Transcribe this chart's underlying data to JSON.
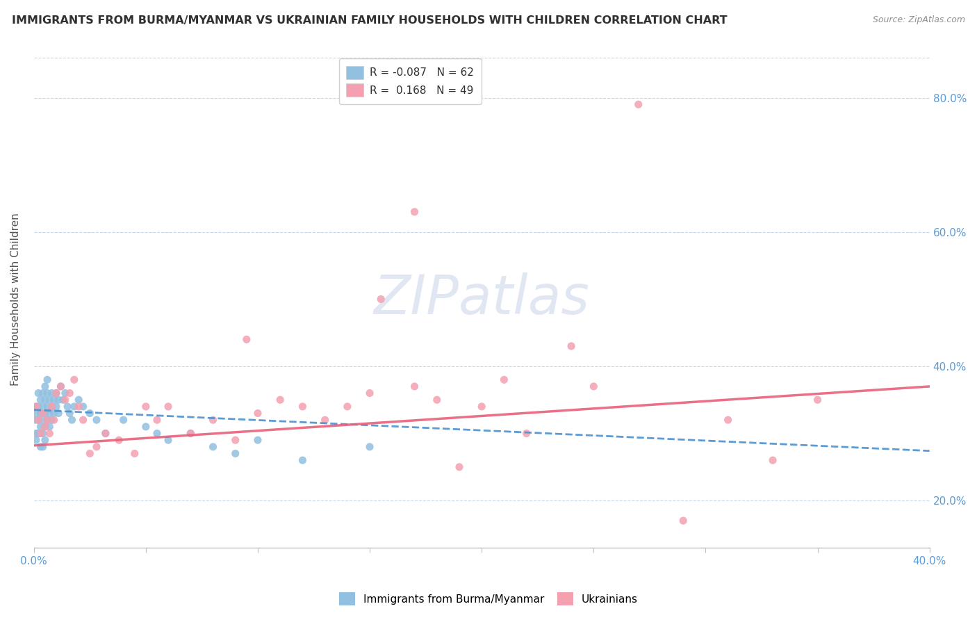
{
  "title": "IMMIGRANTS FROM BURMA/MYANMAR VS UKRAINIAN FAMILY HOUSEHOLDS WITH CHILDREN CORRELATION CHART",
  "source": "Source: ZipAtlas.com",
  "ylabel": "Family Households with Children",
  "xmin": 0.0,
  "xmax": 0.4,
  "ymin": 0.13,
  "ymax": 0.87,
  "right_yticks": [
    0.2,
    0.4,
    0.6,
    0.8
  ],
  "right_yticklabels": [
    "20.0%",
    "40.0%",
    "60.0%",
    "80.0%"
  ],
  "blue_dot_color": "#92c0e0",
  "pink_dot_color": "#f4a0b0",
  "trend_blue_color": "#4a90d0",
  "trend_pink_color": "#e8607a",
  "legend_label_blue": "Immigrants from Burma/Myanmar",
  "legend_label_pink": "Ukrainians",
  "watermark": "ZIPatlas",
  "blue_scatter_x": [
    0.001,
    0.001,
    0.001,
    0.001,
    0.001,
    0.002,
    0.002,
    0.002,
    0.002,
    0.003,
    0.003,
    0.003,
    0.003,
    0.003,
    0.004,
    0.004,
    0.004,
    0.004,
    0.004,
    0.005,
    0.005,
    0.005,
    0.005,
    0.005,
    0.006,
    0.006,
    0.006,
    0.006,
    0.007,
    0.007,
    0.007,
    0.008,
    0.008,
    0.008,
    0.009,
    0.009,
    0.01,
    0.01,
    0.011,
    0.011,
    0.012,
    0.013,
    0.014,
    0.015,
    0.016,
    0.017,
    0.018,
    0.02,
    0.022,
    0.025,
    0.028,
    0.032,
    0.04,
    0.05,
    0.055,
    0.06,
    0.07,
    0.08,
    0.09,
    0.1,
    0.12,
    0.15
  ],
  "blue_scatter_y": [
    0.34,
    0.33,
    0.32,
    0.3,
    0.29,
    0.36,
    0.34,
    0.32,
    0.3,
    0.35,
    0.33,
    0.31,
    0.3,
    0.28,
    0.36,
    0.34,
    0.32,
    0.3,
    0.28,
    0.37,
    0.35,
    0.33,
    0.31,
    0.29,
    0.38,
    0.36,
    0.34,
    0.32,
    0.35,
    0.33,
    0.31,
    0.36,
    0.34,
    0.32,
    0.35,
    0.33,
    0.36,
    0.34,
    0.35,
    0.33,
    0.37,
    0.35,
    0.36,
    0.34,
    0.33,
    0.32,
    0.34,
    0.35,
    0.34,
    0.33,
    0.32,
    0.3,
    0.32,
    0.31,
    0.3,
    0.29,
    0.3,
    0.28,
    0.27,
    0.29,
    0.26,
    0.28
  ],
  "pink_scatter_x": [
    0.001,
    0.002,
    0.003,
    0.004,
    0.005,
    0.006,
    0.007,
    0.008,
    0.009,
    0.01,
    0.012,
    0.014,
    0.016,
    0.018,
    0.02,
    0.022,
    0.025,
    0.028,
    0.032,
    0.038,
    0.045,
    0.05,
    0.055,
    0.06,
    0.07,
    0.08,
    0.09,
    0.095,
    0.1,
    0.11,
    0.12,
    0.13,
    0.14,
    0.15,
    0.155,
    0.17,
    0.18,
    0.19,
    0.2,
    0.21,
    0.22,
    0.24,
    0.25,
    0.27,
    0.29,
    0.31,
    0.33,
    0.35,
    0.17
  ],
  "pink_scatter_y": [
    0.34,
    0.32,
    0.3,
    0.33,
    0.31,
    0.32,
    0.3,
    0.34,
    0.32,
    0.36,
    0.37,
    0.35,
    0.36,
    0.38,
    0.34,
    0.32,
    0.27,
    0.28,
    0.3,
    0.29,
    0.27,
    0.34,
    0.32,
    0.34,
    0.3,
    0.32,
    0.29,
    0.44,
    0.33,
    0.35,
    0.34,
    0.32,
    0.34,
    0.36,
    0.5,
    0.37,
    0.35,
    0.25,
    0.34,
    0.38,
    0.3,
    0.43,
    0.37,
    0.79,
    0.17,
    0.32,
    0.26,
    0.35,
    0.63
  ]
}
